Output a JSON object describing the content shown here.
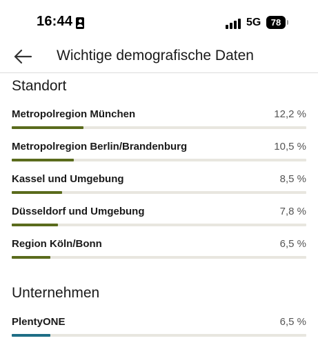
{
  "status_bar": {
    "time": "16:44",
    "network": "5G",
    "battery": "78",
    "id_icon": "id-card-icon",
    "signal_icon": "signal-bars-icon"
  },
  "header": {
    "back_icon": "arrow-left-icon",
    "title": "Wichtige demografische Daten"
  },
  "colors": {
    "location_bar": "#5a6b1c",
    "company_bar": "#1e6e86",
    "track": "#e8e6df"
  },
  "sections": [
    {
      "title": "Standort",
      "items": [
        {
          "label": "Metropolregion München",
          "value": "12,2 %",
          "fraction": 0.122
        },
        {
          "label": "Metropolregion Berlin/Brandenburg",
          "value": "10,5 %",
          "fraction": 0.105
        },
        {
          "label": "Kassel und Umgebung",
          "value": "8,5 %",
          "fraction": 0.085
        },
        {
          "label": "Düsseldorf und Umgebung",
          "value": "7,8 %",
          "fraction": 0.078
        },
        {
          "label": "Region Köln/Bonn",
          "value": "6,5 %",
          "fraction": 0.065
        }
      ]
    },
    {
      "title": "Unternehmen",
      "items": [
        {
          "label": "PlentyONE",
          "value": "6,5 %",
          "fraction": 0.065
        }
      ]
    }
  ]
}
